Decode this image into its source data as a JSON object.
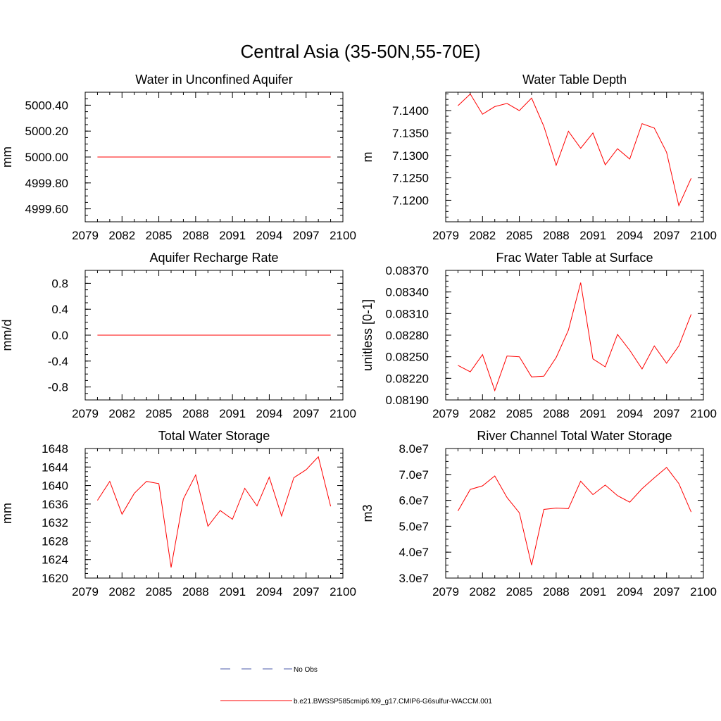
{
  "title": "Central Asia (35-50N,55-70E)",
  "legend": {
    "entries": [
      {
        "label": "No Obs",
        "color": "#4a5aa8",
        "dash": "dashed"
      },
      {
        "label": "b.e21.BWSSP585cmip6.f09_g17.CMIP6-G6sulfur-WACCM.001",
        "color": "#ff0000",
        "dash": "solid"
      }
    ]
  },
  "colors": {
    "series": "#ff0000",
    "obs": "#4a5aa8"
  },
  "chart_data": [
    {
      "type": "line",
      "title": "Water in Unconfined Aquifer",
      "ylabel": "mm",
      "xlim": [
        2079,
        2100
      ],
      "xticks": [
        "2079",
        "2082",
        "2085",
        "2088",
        "2091",
        "2094",
        "2097",
        "2100"
      ],
      "ylim": [
        4999.5,
        5000.5
      ],
      "yticks": [
        "4999.60",
        "4999.80",
        "5000.00",
        "5000.20",
        "5000.40"
      ],
      "x": [
        2080,
        2081,
        2082,
        2083,
        2084,
        2085,
        2086,
        2087,
        2088,
        2089,
        2090,
        2091,
        2092,
        2093,
        2094,
        2095,
        2096,
        2097,
        2098,
        2099
      ],
      "series": [
        {
          "values": [
            5000,
            5000,
            5000,
            5000,
            5000,
            5000,
            5000,
            5000,
            5000,
            5000,
            5000,
            5000,
            5000,
            5000,
            5000,
            5000,
            5000,
            5000,
            5000,
            5000
          ]
        }
      ]
    },
    {
      "type": "line",
      "title": "Water Table Depth",
      "ylabel": "m",
      "xlim": [
        2079,
        2100
      ],
      "xticks": [
        "2079",
        "2082",
        "2085",
        "2088",
        "2091",
        "2094",
        "2097",
        "2100"
      ],
      "ylim": [
        7.1152,
        7.1441
      ],
      "yticks": [
        "7.1200",
        "7.1250",
        "7.1300",
        "7.1350",
        "7.1400"
      ],
      "x": [
        2080,
        2081,
        2082,
        2083,
        2084,
        2085,
        2086,
        2087,
        2088,
        2089,
        2090,
        2091,
        2092,
        2093,
        2094,
        2095,
        2096,
        2097,
        2098,
        2099
      ],
      "series": [
        {
          "values": [
            7.1411,
            7.1437,
            7.1392,
            7.1409,
            7.1416,
            7.14,
            7.1428,
            7.1365,
            7.1278,
            7.1354,
            7.1316,
            7.135,
            7.1279,
            7.1315,
            7.1292,
            7.1371,
            7.1361,
            7.1307,
            7.1188,
            7.1249
          ]
        }
      ]
    },
    {
      "type": "line",
      "title": "Aquifer Recharge Rate",
      "ylabel": "mm/d",
      "xlim": [
        2079,
        2100
      ],
      "xticks": [
        "2079",
        "2082",
        "2085",
        "2088",
        "2091",
        "2094",
        "2097",
        "2100"
      ],
      "ylim": [
        -1.0,
        1.0
      ],
      "yticks": [
        "-0.8",
        "-0.4",
        "0.0",
        "0.4",
        "0.8"
      ],
      "x": [
        2080,
        2081,
        2082,
        2083,
        2084,
        2085,
        2086,
        2087,
        2088,
        2089,
        2090,
        2091,
        2092,
        2093,
        2094,
        2095,
        2096,
        2097,
        2098,
        2099
      ],
      "series": [
        {
          "values": [
            0,
            0,
            0,
            0,
            0,
            0,
            0,
            0,
            0,
            0,
            0,
            0,
            0,
            0,
            0,
            0,
            0,
            0,
            0,
            0
          ]
        }
      ]
    },
    {
      "type": "line",
      "title": "Frac Water Table at Surface",
      "ylabel": "unitless [0-1]",
      "xlim": [
        2079,
        2100
      ],
      "xticks": [
        "2079",
        "2082",
        "2085",
        "2088",
        "2091",
        "2094",
        "2097",
        "2100"
      ],
      "ylim": [
        0.0819,
        0.0837
      ],
      "yticks": [
        "0.08190",
        "0.08220",
        "0.08250",
        "0.08280",
        "0.08310",
        "0.08340",
        "0.08370"
      ],
      "x": [
        2080,
        2081,
        2082,
        2083,
        2084,
        2085,
        2086,
        2087,
        2088,
        2089,
        2090,
        2091,
        2092,
        2093,
        2094,
        2095,
        2096,
        2097,
        2098,
        2099
      ],
      "series": [
        {
          "values": [
            0.08238,
            0.08229,
            0.08253,
            0.08203,
            0.08251,
            0.0825,
            0.08222,
            0.08223,
            0.08249,
            0.08287,
            0.08353,
            0.08247,
            0.08236,
            0.08281,
            0.08259,
            0.08233,
            0.08265,
            0.08241,
            0.08265,
            0.08309
          ]
        }
      ]
    },
    {
      "type": "line",
      "title": "Total Water Storage",
      "ylabel": "mm",
      "xlim": [
        2079,
        2100
      ],
      "xticks": [
        "2079",
        "2082",
        "2085",
        "2088",
        "2091",
        "2094",
        "2097",
        "2100"
      ],
      "ylim": [
        1620,
        1648
      ],
      "yticks": [
        "1620",
        "1624",
        "1628",
        "1632",
        "1636",
        "1640",
        "1644",
        "1648"
      ],
      "x": [
        2080,
        2081,
        2082,
        2083,
        2084,
        2085,
        2086,
        2087,
        2088,
        2089,
        2090,
        2091,
        2092,
        2093,
        2094,
        2095,
        2096,
        2097,
        2098,
        2099
      ],
      "series": [
        {
          "values": [
            1636.8,
            1640.9,
            1633.8,
            1638.3,
            1640.9,
            1640.4,
            1622.3,
            1637.1,
            1642.3,
            1631.2,
            1634.6,
            1632.7,
            1639.4,
            1635.6,
            1641.8,
            1633.4,
            1641.7,
            1643.4,
            1646.2,
            1635.5
          ]
        }
      ]
    },
    {
      "type": "line",
      "title": "River Channel Total Water Storage",
      "ylabel": "m3",
      "xlim": [
        2079,
        2100
      ],
      "xticks": [
        "2079",
        "2082",
        "2085",
        "2088",
        "2091",
        "2094",
        "2097",
        "2100"
      ],
      "ylim": [
        30000000,
        80000000
      ],
      "yticks": [
        "3.0e7",
        "4.0e7",
        "5.0e7",
        "6.0e7",
        "7.0e7",
        "8.0e7"
      ],
      "x": [
        2080,
        2081,
        2082,
        2083,
        2084,
        2085,
        2086,
        2087,
        2088,
        2089,
        2090,
        2091,
        2092,
        2093,
        2094,
        2095,
        2096,
        2097,
        2098,
        2099
      ],
      "series": [
        {
          "values": [
            55900000,
            64200000,
            65600000,
            69400000,
            61100000,
            55200000,
            35000000,
            56500000,
            57000000,
            56800000,
            67400000,
            62200000,
            65900000,
            61800000,
            59300000,
            64500000,
            68700000,
            72700000,
            66500000,
            55500000
          ]
        }
      ]
    }
  ]
}
